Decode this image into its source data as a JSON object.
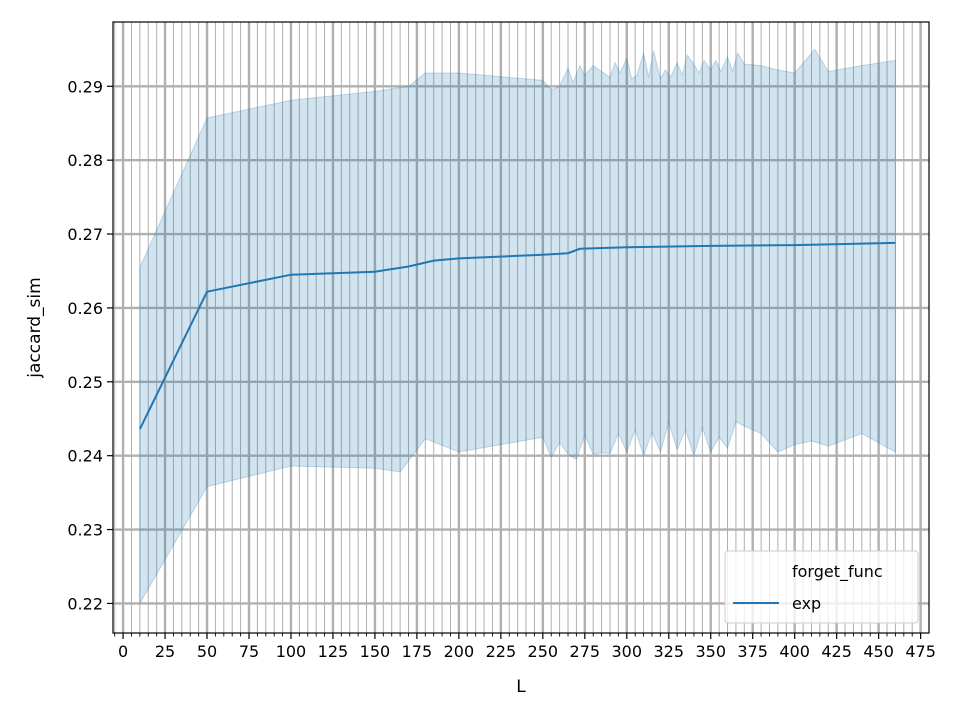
{
  "chart_data": {
    "type": "line",
    "xlabel": "L",
    "ylabel": "jaccard_sim",
    "xlim": [
      -6,
      480
    ],
    "ylim": [
      0.216,
      0.2987
    ],
    "x_ticks": [
      0,
      25,
      50,
      75,
      100,
      125,
      150,
      175,
      200,
      225,
      250,
      275,
      300,
      325,
      350,
      375,
      400,
      425,
      450,
      475
    ],
    "y_ticks": [
      0.22,
      0.23,
      0.24,
      0.25,
      0.26,
      0.27,
      0.28,
      0.29
    ],
    "grid": true,
    "legend": {
      "title": "forget_func",
      "placement": "lower-right",
      "entries": [
        "exp"
      ]
    },
    "colors": {
      "line": "#1f77b4",
      "band": "#1f77b4",
      "grid": "#b0b0b0"
    },
    "series": [
      {
        "name": "exp",
        "x": [
          10,
          50,
          100,
          150,
          170,
          185,
          200,
          250,
          265,
          272,
          300,
          350,
          400,
          460
        ],
        "y": [
          0.2436,
          0.2622,
          0.2645,
          0.2649,
          0.2656,
          0.2664,
          0.2667,
          0.2672,
          0.2674,
          0.268,
          0.2682,
          0.2684,
          0.2685,
          0.2688
        ],
        "ci_upper_x": [
          10,
          50,
          100,
          150,
          170,
          180,
          200,
          250,
          255,
          260,
          262,
          265,
          268,
          272,
          275,
          280,
          285,
          290,
          293,
          296,
          300,
          303,
          306,
          310,
          313,
          316,
          320,
          323,
          326,
          330,
          333,
          336,
          340,
          343,
          346,
          350,
          353,
          356,
          360,
          363,
          366,
          370,
          380,
          390,
          400,
          412,
          420,
          440,
          460
        ],
        "ci_upper": [
          0.2655,
          0.2857,
          0.2881,
          0.2893,
          0.29,
          0.2918,
          0.2918,
          0.2908,
          0.2895,
          0.29,
          0.291,
          0.2925,
          0.2905,
          0.2928,
          0.2915,
          0.2928,
          0.292,
          0.2912,
          0.2932,
          0.2918,
          0.2938,
          0.291,
          0.2915,
          0.2945,
          0.2912,
          0.2948,
          0.291,
          0.2922,
          0.2912,
          0.2932,
          0.2915,
          0.2942,
          0.293,
          0.2918,
          0.2935,
          0.2922,
          0.2935,
          0.292,
          0.294,
          0.292,
          0.2945,
          0.293,
          0.2928,
          0.2922,
          0.2918,
          0.295,
          0.292,
          0.2928,
          0.2935
        ],
        "ci_lower_x": [
          10,
          50,
          100,
          150,
          165,
          180,
          200,
          250,
          255,
          260,
          265,
          270,
          275,
          280,
          285,
          290,
          295,
          300,
          305,
          310,
          315,
          320,
          325,
          330,
          335,
          340,
          345,
          350,
          355,
          360,
          365,
          370,
          380,
          390,
          400,
          410,
          420,
          440,
          460
        ],
        "ci_lower": [
          0.22,
          0.2358,
          0.2386,
          0.2383,
          0.2378,
          0.2423,
          0.2405,
          0.2425,
          0.2398,
          0.2418,
          0.2402,
          0.2395,
          0.2428,
          0.2402,
          0.2404,
          0.2403,
          0.243,
          0.2405,
          0.2435,
          0.24,
          0.2432,
          0.2405,
          0.2445,
          0.2408,
          0.2435,
          0.24,
          0.2438,
          0.2405,
          0.2425,
          0.241,
          0.2446,
          0.244,
          0.243,
          0.2405,
          0.2415,
          0.242,
          0.2413,
          0.243,
          0.2405
        ]
      }
    ]
  }
}
